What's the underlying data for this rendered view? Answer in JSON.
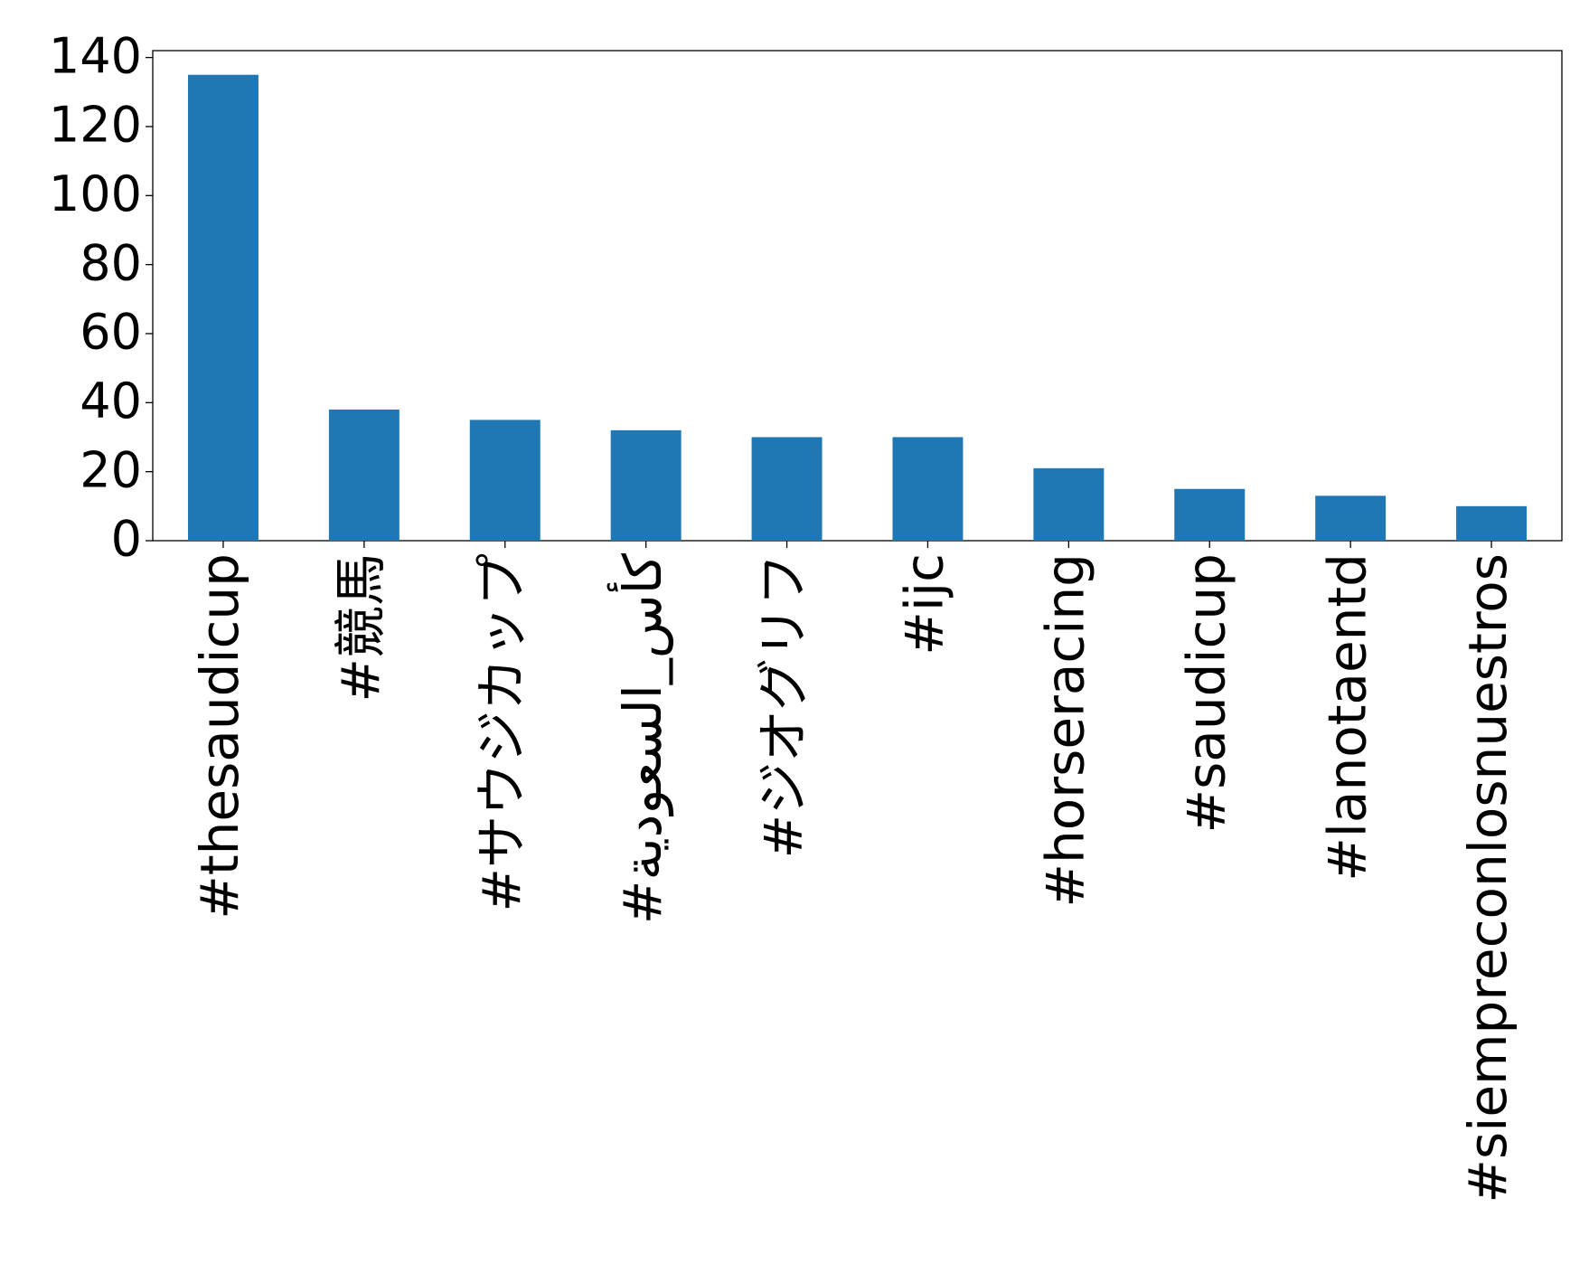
{
  "chart_data": {
    "type": "bar",
    "categories": [
      "#thesaudicup",
      "#競馬",
      "#サウジカップ",
      "#كأس_السعودية",
      "#ジオグリフ",
      "#ijc",
      "#horseracing",
      "#saudicup",
      "#lanotaentd",
      "#siempreconlosnuestros"
    ],
    "values": [
      135,
      38,
      35,
      32,
      30,
      30,
      21,
      15,
      13,
      10
    ],
    "color": "#1f77b4",
    "ylim": [
      0,
      142
    ],
    "yticks": [
      0,
      20,
      40,
      60,
      80,
      100,
      120,
      140
    ],
    "grid": false
  }
}
